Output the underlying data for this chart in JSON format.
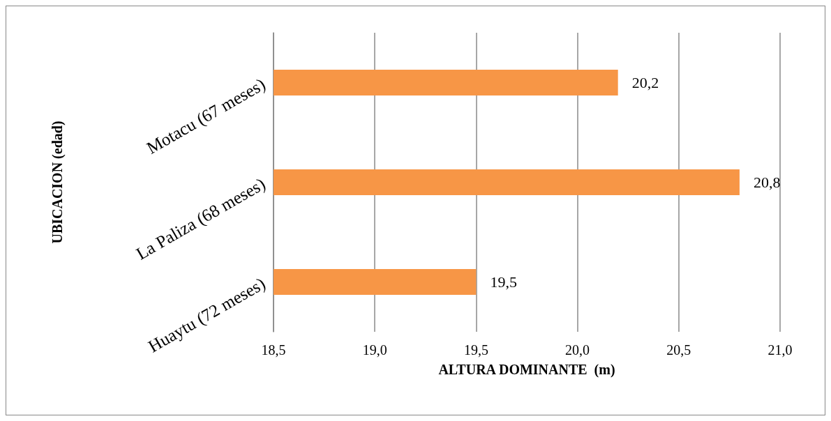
{
  "chart_data": {
    "type": "bar",
    "orientation": "horizontal",
    "xlabel": "ALTURA DOMINANTE  (m)",
    "ylabel": "UBICACION (edad)",
    "categories": [
      "Motacu (67 meses)",
      "La Paliza (68 meses)",
      "Huaytu (72 meses)"
    ],
    "values": [
      20.2,
      20.8,
      19.5
    ],
    "value_labels": [
      "20,2",
      "20,8",
      "19,5"
    ],
    "color": "#f79646",
    "xlim": [
      18.5,
      21.0
    ],
    "xticks": [
      {
        "value": 18.5,
        "label": "18,5"
      },
      {
        "value": 19.0,
        "label": "19,0"
      },
      {
        "value": 19.5,
        "label": "19,5"
      },
      {
        "value": 20.0,
        "label": "20,0"
      },
      {
        "value": 20.5,
        "label": "20,5"
      },
      {
        "value": 21.0,
        "label": "21,0"
      }
    ],
    "grid": "x"
  }
}
